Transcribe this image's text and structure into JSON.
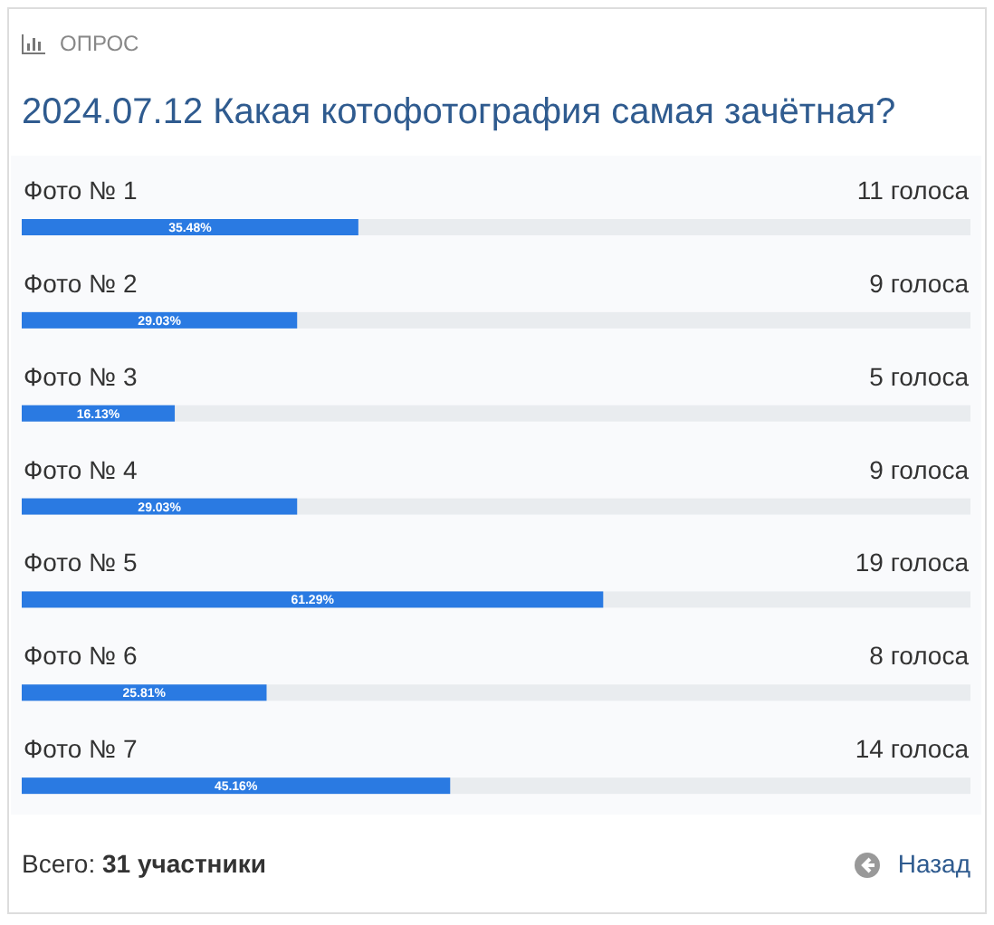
{
  "chart_data": {
    "type": "bar",
    "orientation": "horizontal",
    "subtitle": "ОПРОС",
    "title": "2024.07.12 Какая котофотография самая зачётная?",
    "categories": [
      "Фото № 1",
      "Фото № 2",
      "Фото № 3",
      "Фото № 4",
      "Фото № 5",
      "Фото № 6",
      "Фото № 7"
    ],
    "values": [
      35.48,
      29.03,
      16.13,
      29.03,
      61.29,
      25.81,
      45.16
    ],
    "value_labels": [
      "35.48%",
      "29.03%",
      "16.13%",
      "29.03%",
      "61.29%",
      "25.81%",
      "45.16%"
    ],
    "color": "#2a7ae2",
    "xlim": [
      0,
      100
    ],
    "tick_labels": "y",
    "annotations": [
      "11 голоса",
      "9 голоса",
      "5 голоса",
      "9 голоса",
      "19 голоса",
      "8 голоса",
      "14 голоса",
      "Всего: 31 участники",
      "Назад"
    ]
  }
}
